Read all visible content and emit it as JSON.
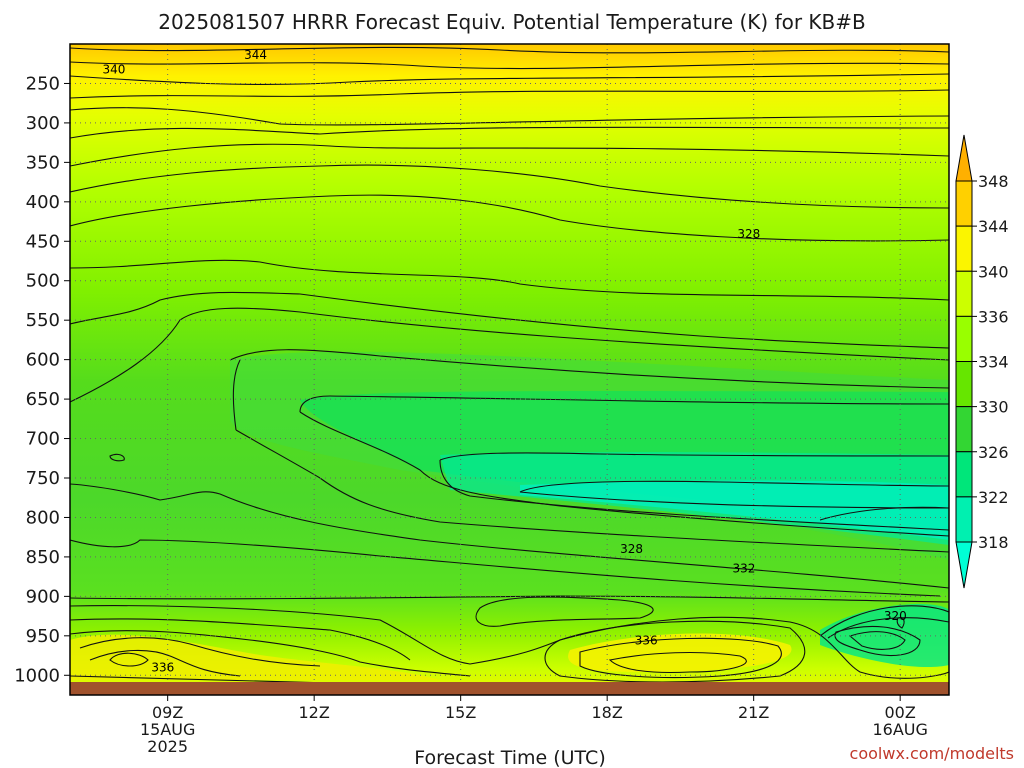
{
  "chart_data": {
    "type": "heatmap",
    "title": "2025081507 HRRR Forecast Equiv. Potential Temperature (K) for KB#B",
    "xlabel": "Forecast Time (UTC)",
    "ylabel": "",
    "x_ticks": [
      {
        "label": "09Z",
        "sub": [
          "15AUG",
          "2025"
        ],
        "hour": 9
      },
      {
        "label": "12Z",
        "sub": [],
        "hour": 12
      },
      {
        "label": "15Z",
        "sub": [],
        "hour": 15
      },
      {
        "label": "18Z",
        "sub": [],
        "hour": 18
      },
      {
        "label": "21Z",
        "sub": [],
        "hour": 21
      },
      {
        "label": "00Z",
        "sub": [
          "16AUG"
        ],
        "hour": 24
      }
    ],
    "xlim_hours": [
      7,
      25
    ],
    "y_ticks": [
      250,
      300,
      350,
      400,
      450,
      500,
      550,
      600,
      650,
      700,
      750,
      800,
      850,
      900,
      950,
      1000
    ],
    "ylim_hpa": [
      200,
      1025
    ],
    "colorbar": {
      "labels": [
        "348",
        "344",
        "340",
        "336",
        "334",
        "330",
        "326",
        "322",
        "318"
      ],
      "colors": [
        "#ffb000",
        "#ffd000",
        "#fbf500",
        "#ccff00",
        "#99ff00",
        "#66e600",
        "#33d633",
        "#00e67a",
        "#00f0b0",
        "#00ffd5"
      ]
    },
    "contour_labels": [
      {
        "text": "344",
        "hour": 10.8,
        "hpa": 214
      },
      {
        "text": "340",
        "hour": 7.9,
        "hpa": 232
      },
      {
        "text": "328",
        "hour": 20.9,
        "hpa": 441
      },
      {
        "text": "328",
        "hour": 18.5,
        "hpa": 840
      },
      {
        "text": "332",
        "hour": 20.8,
        "hpa": 865
      },
      {
        "text": "336",
        "hour": 18.8,
        "hpa": 956
      },
      {
        "text": "336",
        "hour": 8.9,
        "hpa": 990
      },
      {
        "text": "320",
        "hour": 23.9,
        "hpa": 925
      }
    ],
    "grid": true
  },
  "credit": "coolwx.com/modelts"
}
